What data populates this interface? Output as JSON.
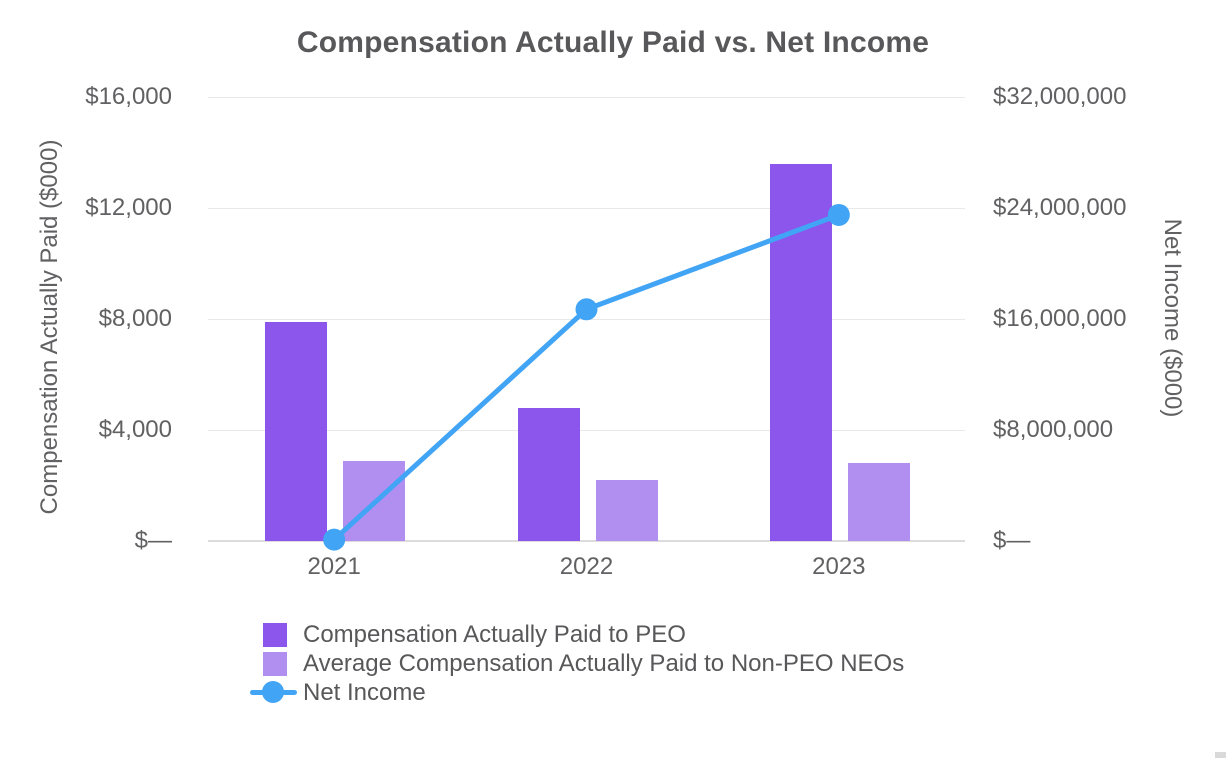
{
  "chart_data": {
    "type": "combo-bar-line",
    "title": "Compensation Actually Paid vs. Net Income",
    "categories": [
      "2021",
      "2022",
      "2023"
    ],
    "series": [
      {
        "name": "Compensation Actually Paid to PEO",
        "type": "bar",
        "axis": "left",
        "color": "#8c55ec",
        "values": [
          7900,
          4800,
          13600
        ]
      },
      {
        "name": "Average Compensation Actually Paid to Non-PEO NEOs",
        "type": "bar",
        "axis": "left",
        "color": "#b18ff1",
        "values": [
          2900,
          2200,
          2800
        ]
      },
      {
        "name": "Net Income",
        "type": "line",
        "axis": "right",
        "color": "#41a4f5",
        "values": [
          100000,
          16700000,
          23500000
        ]
      }
    ],
    "left_axis": {
      "label": "Compensation Actually Paid ($000)",
      "min": 0,
      "max": 16000,
      "ticks": [
        {
          "value": 0,
          "label": "$—"
        },
        {
          "value": 4000,
          "label": "$4,000"
        },
        {
          "value": 8000,
          "label": "$8,000"
        },
        {
          "value": 12000,
          "label": "$12,000"
        },
        {
          "value": 16000,
          "label": "$16,000"
        }
      ]
    },
    "right_axis": {
      "label": "Net Income ($000)",
      "min": 0,
      "max": 32000000,
      "ticks": [
        {
          "value": 0,
          "label": "$—"
        },
        {
          "value": 8000000,
          "label": "$8,000,000"
        },
        {
          "value": 16000000,
          "label": "$16,000,000"
        },
        {
          "value": 24000000,
          "label": "$24,000,000"
        },
        {
          "value": 32000000,
          "label": "$32,000,000"
        }
      ]
    },
    "grid": true,
    "legend_position": "bottom-left"
  },
  "colors": {
    "title_text": "#58585a",
    "axis_text": "#616163",
    "gridline": "#e8e8e8",
    "baseline": "#dcdcdc",
    "background": "#ffffff"
  }
}
